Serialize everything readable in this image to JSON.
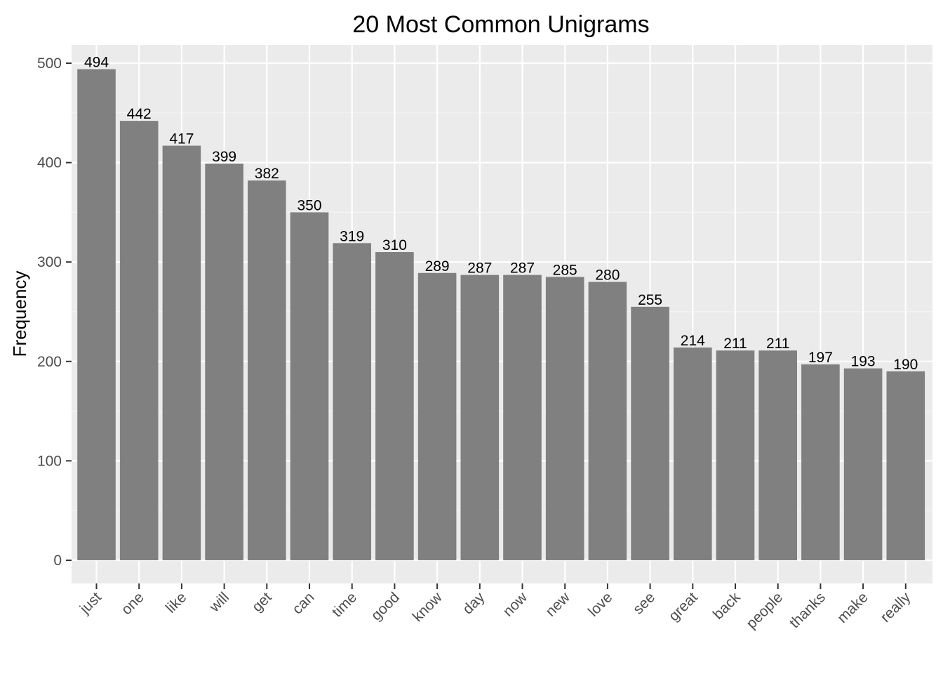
{
  "chart_data": {
    "type": "bar",
    "title": "20 Most Common Unigrams",
    "xlabel": "",
    "ylabel": "Frequency",
    "categories": [
      "just",
      "one",
      "like",
      "will",
      "get",
      "can",
      "time",
      "good",
      "know",
      "day",
      "now",
      "new",
      "love",
      "see",
      "great",
      "back",
      "people",
      "thanks",
      "make",
      "really"
    ],
    "values": [
      494,
      442,
      417,
      399,
      382,
      350,
      319,
      310,
      289,
      287,
      287,
      285,
      280,
      255,
      214,
      211,
      211,
      197,
      193,
      190
    ],
    "ylim": [
      0,
      500
    ],
    "yticks": [
      0,
      100,
      200,
      300,
      400,
      500
    ],
    "grid": true,
    "legend": "none",
    "colors": {
      "bar": "#808080",
      "panel": "#ebebeb",
      "grid_major": "#ffffff",
      "grid_minor": "#f5f5f5",
      "tick_text": "#4d4d4d",
      "label_text": "#000000"
    }
  }
}
